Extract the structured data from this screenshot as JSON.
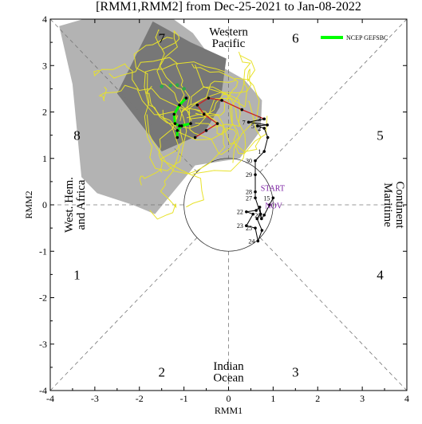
{
  "chart_data": {
    "type": "scatter",
    "title": "[RMM1,RMM2] from Dec-25-2021 to Jan-08-2022",
    "xlabel": "RMM1",
    "ylabel": "RMM2",
    "xlim": [
      -4,
      4
    ],
    "ylim": [
      -4,
      4
    ],
    "x_ticks": [
      "-4",
      "-3",
      "-2",
      "-1",
      "0",
      "1",
      "2",
      "3",
      "4"
    ],
    "y_ticks": [
      "-4",
      "-3",
      "-2",
      "-1",
      "0",
      "1",
      "2",
      "3",
      "4"
    ],
    "phase_numbers": [
      {
        "label": "1",
        "x": -3.4,
        "y": -1.5
      },
      {
        "label": "2",
        "x": -1.5,
        "y": -3.6
      },
      {
        "label": "3",
        "x": 1.5,
        "y": -3.6
      },
      {
        "label": "4",
        "x": 3.4,
        "y": -1.5
      },
      {
        "label": "5",
        "x": 3.4,
        "y": 1.5
      },
      {
        "label": "6",
        "x": 1.5,
        "y": 3.6
      },
      {
        "label": "7",
        "x": -1.5,
        "y": 3.6
      },
      {
        "label": "8",
        "x": -3.4,
        "y": 1.5
      }
    ],
    "region_labels": {
      "top": [
        "Western",
        "Pacific"
      ],
      "bottom": [
        "Indian",
        "Ocean"
      ],
      "left": [
        "West. Hem.",
        "and Africa"
      ],
      "right": [
        "Maritime",
        "Continent"
      ]
    },
    "legend": {
      "label": "NCEP GEFSBC",
      "color": "#00ff00",
      "position": "top-right"
    },
    "observed": {
      "labels": [
        "START",
        "NOV"
      ],
      "label_color": "#7a1fa2",
      "points": [
        {
          "label": "15",
          "x": 1.0,
          "y": 0.15
        },
        {
          "label": "",
          "x": 0.92,
          "y": 0.0
        },
        {
          "label": "20",
          "x": 0.8,
          "y": -0.22
        },
        {
          "label": "",
          "x": 0.74,
          "y": -0.3
        },
        {
          "label": "",
          "x": 0.7,
          "y": -0.05
        },
        {
          "label": "",
          "x": 0.62,
          "y": -0.12
        },
        {
          "label": "22",
          "x": 0.4,
          "y": -0.15
        },
        {
          "label": "",
          "x": 0.55,
          "y": -0.2
        },
        {
          "label": "23",
          "x": 0.4,
          "y": -0.45
        },
        {
          "label": "25",
          "x": 0.6,
          "y": -0.5
        },
        {
          "label": "24",
          "x": 0.66,
          "y": -0.78
        },
        {
          "label": "",
          "x": 0.75,
          "y": -0.55
        },
        {
          "label": "",
          "x": 0.64,
          "y": -0.3
        },
        {
          "label": "",
          "x": 0.72,
          "y": -0.2
        },
        {
          "label": "27",
          "x": 0.6,
          "y": 0.15
        },
        {
          "label": "28",
          "x": 0.6,
          "y": 0.28
        },
        {
          "label": "29",
          "x": 0.6,
          "y": 0.65
        },
        {
          "label": "30",
          "x": 0.6,
          "y": 0.95
        },
        {
          "label": "1",
          "x": 0.8,
          "y": 1.15
        },
        {
          "label": "",
          "x": 0.88,
          "y": 1.45
        },
        {
          "label": "2",
          "x": 0.8,
          "y": 1.65
        },
        {
          "label": "5",
          "x": 0.65,
          "y": 1.7
        },
        {
          "label": "",
          "x": 0.87,
          "y": 1.72
        },
        {
          "label": "7",
          "x": 0.45,
          "y": 1.78
        },
        {
          "label": "3",
          "x": 0.8,
          "y": 1.85
        }
      ]
    },
    "forecast": {
      "color": "#cc2222",
      "points": [
        {
          "x": 0.8,
          "y": 1.85
        },
        {
          "x": 0.3,
          "y": 2.05
        },
        {
          "x": -0.15,
          "y": 2.25
        },
        {
          "x": -0.45,
          "y": 2.3
        },
        {
          "x": -0.7,
          "y": 2.15
        },
        {
          "x": -0.55,
          "y": 1.95
        },
        {
          "x": -0.25,
          "y": 1.75
        },
        {
          "x": -0.5,
          "y": 1.6
        },
        {
          "x": -0.75,
          "y": 1.45
        }
      ]
    },
    "ensemble_mean": {
      "color": "#00ff00",
      "points": [
        {
          "x": -0.95,
          "y": 2.3
        },
        {
          "x": -1.1,
          "y": 2.15
        },
        {
          "x": -1.22,
          "y": 1.95
        },
        {
          "x": -1.2,
          "y": 1.75
        },
        {
          "x": -1.1,
          "y": 1.7
        },
        {
          "x": -0.85,
          "y": 1.75
        },
        {
          "x": -1.05,
          "y": 1.7
        },
        {
          "x": -1.15,
          "y": 1.6
        },
        {
          "x": -1.15,
          "y": 1.45
        }
      ]
    },
    "ensemble_extra": {
      "color": "#2ea84a",
      "points": [
        {
          "x": -1.5,
          "y": 2.55
        },
        {
          "x": -1.3,
          "y": 2.57
        },
        {
          "x": -1.15,
          "y": 2.58
        },
        {
          "x": -1.0,
          "y": 2.5
        }
      ]
    },
    "uncertainty": {
      "outer_color": "#b3b3b3",
      "inner_color": "#777777",
      "outer": [
        {
          "x": -3.8,
          "y": 3.85
        },
        {
          "x": -2.9,
          "y": 4.1
        },
        {
          "x": -1.6,
          "y": 4.25
        },
        {
          "x": -0.8,
          "y": 3.7
        },
        {
          "x": -0.3,
          "y": 3.05
        },
        {
          "x": 0.35,
          "y": 2.7
        },
        {
          "x": 0.75,
          "y": 2.25
        },
        {
          "x": 0.72,
          "y": 1.6
        },
        {
          "x": 0.25,
          "y": 1.0
        },
        {
          "x": -0.75,
          "y": 0.85
        },
        {
          "x": -1.65,
          "y": -0.2
        },
        {
          "x": -2.15,
          "y": 0.0
        },
        {
          "x": -2.95,
          "y": 0.25
        },
        {
          "x": -3.3,
          "y": 0.6
        },
        {
          "x": -3.5,
          "y": 2.6
        }
      ],
      "inner": [
        {
          "x": -1.7,
          "y": 3.95
        },
        {
          "x": -0.85,
          "y": 3.5
        },
        {
          "x": -0.05,
          "y": 3.15
        },
        {
          "x": -0.2,
          "y": 2.1
        },
        {
          "x": -0.55,
          "y": 1.55
        },
        {
          "x": -1.5,
          "y": 1.15
        },
        {
          "x": -2.5,
          "y": 2.4
        }
      ]
    }
  }
}
